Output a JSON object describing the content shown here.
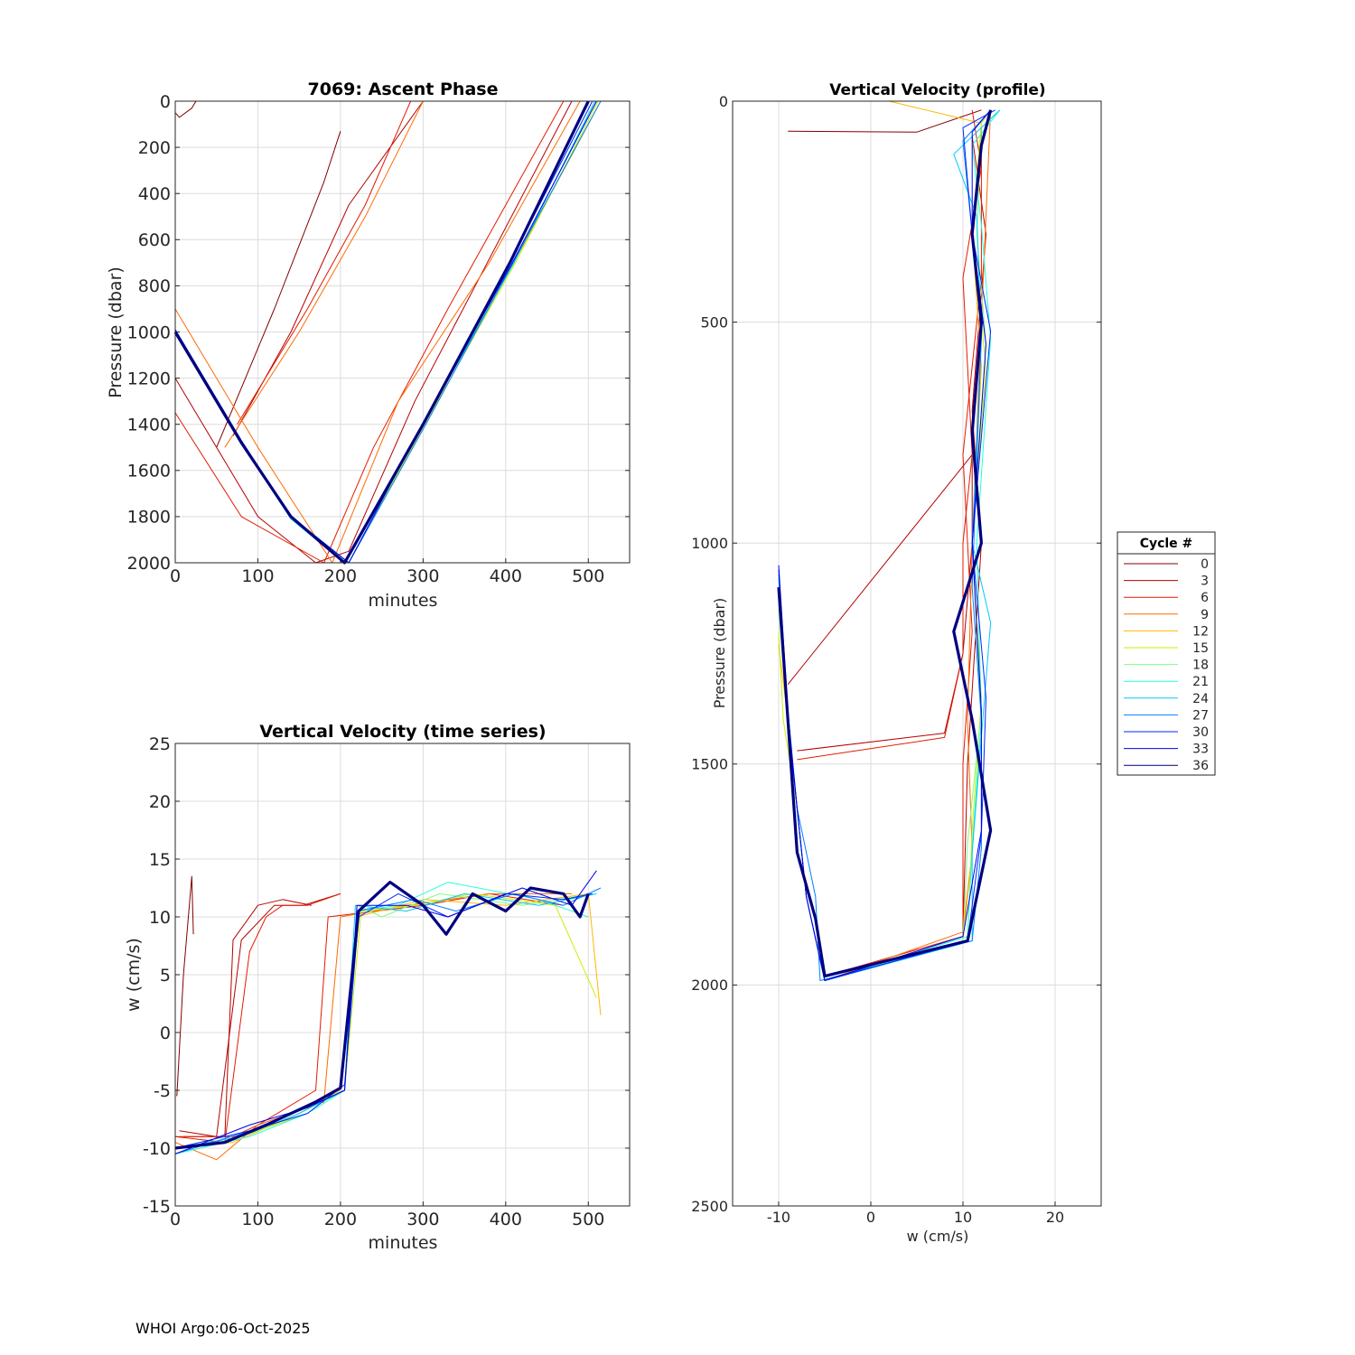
{
  "footer": "WHOI Argo:06-Oct-2025",
  "palette": [
    "#800000",
    "#b40000",
    "#e41a00",
    "#ff6a00",
    "#ffb800",
    "#c8ef00",
    "#7fff7f",
    "#23ffd8",
    "#00c8ff",
    "#0080ff",
    "#0028ff",
    "#0000e8",
    "#000080"
  ],
  "chart_data": [
    {
      "id": "ascent",
      "type": "line",
      "title": "7069: Ascent Phase",
      "xlabel": "minutes",
      "ylabel": "Pressure (dbar)",
      "xlim": [
        0,
        550
      ],
      "ylim": [
        0,
        2000
      ],
      "y_reversed": true,
      "xticks": [
        0,
        100,
        200,
        300,
        400,
        500
      ],
      "yticks": [
        0,
        200,
        400,
        600,
        800,
        1000,
        1200,
        1400,
        1600,
        1800,
        2000
      ],
      "series": [
        {
          "name": "0",
          "x": [
            0,
            5,
            20,
            25
          ],
          "y": [
            50,
            70,
            30,
            0
          ]
        },
        {
          "name": "0",
          "x": [
            50,
            120,
            180,
            200
          ],
          "y": [
            1500,
            900,
            350,
            130
          ]
        },
        {
          "name": "3",
          "x": [
            0,
            100,
            170,
            210,
            290,
            480
          ],
          "y": [
            1200,
            1800,
            2000,
            1950,
            1300,
            0
          ]
        },
        {
          "name": "3",
          "x": [
            70,
            140,
            210,
            300
          ],
          "y": [
            1450,
            1000,
            450,
            0
          ]
        },
        {
          "name": "6",
          "x": [
            0,
            80,
            180,
            240,
            330,
            470
          ],
          "y": [
            1350,
            1800,
            2000,
            1500,
            900,
            0
          ]
        },
        {
          "name": "6",
          "x": [
            75,
            160,
            230,
            285
          ],
          "y": [
            1400,
            900,
            450,
            0
          ]
        },
        {
          "name": "9",
          "x": [
            0,
            100,
            190,
            270,
            380,
            490
          ],
          "y": [
            900,
            1500,
            2000,
            1300,
            700,
            0
          ]
        },
        {
          "name": "9",
          "x": [
            60,
            150,
            230,
            300
          ],
          "y": [
            1500,
            1000,
            500,
            0
          ]
        },
        {
          "name": "12",
          "x": [
            0,
            80,
            140,
            210,
            300,
            410,
            515
          ],
          "y": [
            990,
            1480,
            1800,
            2000,
            1400,
            700,
            0
          ]
        },
        {
          "name": "15",
          "x": [
            0,
            80,
            140,
            210,
            305,
            415,
            512
          ],
          "y": [
            990,
            1480,
            1800,
            2000,
            1380,
            680,
            0
          ]
        },
        {
          "name": "18",
          "x": [
            0,
            80,
            140,
            210,
            300,
            405,
            505
          ],
          "y": [
            990,
            1470,
            1800,
            2000,
            1400,
            700,
            0
          ]
        },
        {
          "name": "21",
          "x": [
            0,
            80,
            140,
            210,
            300,
            410,
            510
          ],
          "y": [
            1000,
            1480,
            1800,
            2000,
            1390,
            690,
            0
          ]
        },
        {
          "name": "24",
          "x": [
            0,
            80,
            140,
            205,
            300,
            410,
            508
          ],
          "y": [
            990,
            1480,
            1810,
            2000,
            1400,
            700,
            0
          ]
        },
        {
          "name": "27",
          "x": [
            0,
            80,
            140,
            210,
            305,
            412,
            515
          ],
          "y": [
            995,
            1480,
            1800,
            2000,
            1390,
            680,
            0
          ]
        },
        {
          "name": "30",
          "x": [
            0,
            80,
            140,
            205,
            300,
            405,
            505
          ],
          "y": [
            1000,
            1480,
            1800,
            2000,
            1400,
            700,
            0
          ]
        },
        {
          "name": "33",
          "x": [
            0,
            80,
            140,
            210,
            302,
            408,
            510
          ],
          "y": [
            990,
            1470,
            1800,
            2000,
            1380,
            700,
            0
          ]
        },
        {
          "name": "36",
          "x": [
            0,
            80,
            140,
            205,
            300,
            405,
            500
          ],
          "y": [
            1000,
            1480,
            1800,
            2000,
            1400,
            700,
            0
          ]
        }
      ]
    },
    {
      "id": "vvts",
      "type": "line",
      "title": "Vertical Velocity (time series)",
      "xlabel": "minutes",
      "ylabel": "w (cm/s)",
      "xlim": [
        0,
        550
      ],
      "ylim": [
        -15,
        25
      ],
      "y_reversed": false,
      "xticks": [
        0,
        100,
        200,
        300,
        400,
        500
      ],
      "yticks": [
        -15,
        -10,
        -5,
        0,
        5,
        10,
        15,
        20,
        25
      ],
      "series": [
        {
          "name": "0",
          "x": [
            2,
            10,
            20,
            22
          ],
          "y": [
            -5.5,
            5,
            13.5,
            8.5
          ]
        },
        {
          "name": "3",
          "x": [
            10,
            60,
            70,
            100,
            130,
            165
          ],
          "y": [
            -9,
            -9,
            8,
            11,
            11.5,
            11
          ]
        },
        {
          "name": "3",
          "x": [
            5,
            50,
            80,
            120,
            155,
            200
          ],
          "y": [
            -8.5,
            -9,
            8,
            11,
            11,
            12
          ]
        },
        {
          "name": "6",
          "x": [
            0,
            70,
            100,
            170,
            185,
            300,
            380,
            470
          ],
          "y": [
            -9,
            -9,
            -8,
            -5,
            10,
            11,
            12,
            11
          ]
        },
        {
          "name": "6",
          "x": [
            0,
            60,
            90,
            110,
            130,
            160,
            200
          ],
          "y": [
            -9,
            -9.5,
            7,
            10,
            11,
            11,
            12
          ]
        },
        {
          "name": "9",
          "x": [
            0,
            50,
            100,
            180,
            200,
            280,
            380,
            480
          ],
          "y": [
            -9.5,
            -11,
            -8,
            -6,
            10,
            11,
            12,
            12
          ]
        },
        {
          "name": "12",
          "x": [
            0,
            70,
            150,
            200,
            220,
            300,
            400,
            500,
            515
          ],
          "y": [
            -10,
            -9.5,
            -7,
            -5,
            10,
            11.5,
            11,
            12,
            1.5
          ]
        },
        {
          "name": "15",
          "x": [
            0,
            80,
            160,
            205,
            225,
            290,
            360,
            460,
            510
          ],
          "y": [
            -10,
            -9,
            -7,
            -5,
            10.5,
            11,
            12,
            11,
            3
          ]
        },
        {
          "name": "18",
          "x": [
            5,
            80,
            150,
            205,
            220,
            250,
            320,
            420,
            505
          ],
          "y": [
            -10,
            -9,
            -7,
            -5,
            11,
            10,
            12,
            11,
            12
          ]
        },
        {
          "name": "21",
          "x": [
            0,
            90,
            160,
            205,
            220,
            270,
            330,
            440,
            500
          ],
          "y": [
            -10.5,
            -9,
            -7,
            -5,
            10.5,
            11,
            13,
            11.5,
            10
          ]
        },
        {
          "name": "24",
          "x": [
            0,
            80,
            150,
            205,
            218,
            280,
            350,
            440,
            510
          ],
          "y": [
            -10,
            -9,
            -7,
            -5,
            11,
            10.5,
            12,
            11,
            12
          ]
        },
        {
          "name": "27",
          "x": [
            0,
            90,
            160,
            205,
            220,
            290,
            340,
            410,
            470,
            515
          ],
          "y": [
            -10.5,
            -8.5,
            -6.5,
            -5,
            10.5,
            11.5,
            10.5,
            12,
            11,
            12.5
          ]
        },
        {
          "name": "30",
          "x": [
            0,
            90,
            160,
            205,
            222,
            270,
            330,
            400,
            470,
            505
          ],
          "y": [
            -10,
            -8.5,
            -7,
            -4.5,
            10,
            12,
            10,
            12,
            11.5,
            12
          ]
        },
        {
          "name": "33",
          "x": [
            0,
            90,
            160,
            205,
            220,
            280,
            330,
            420,
            480,
            510
          ],
          "y": [
            -10.5,
            -8,
            -6.5,
            -5,
            11,
            11,
            10,
            12.5,
            11,
            14
          ]
        },
        {
          "name": "36",
          "x": [
            0,
            60,
            110,
            170,
            200,
            222,
            260,
            300,
            328,
            360,
            400,
            430,
            470,
            490,
            500
          ],
          "y": [
            -10,
            -9.5,
            -8,
            -6,
            -4.8,
            10.5,
            13,
            11,
            8.5,
            12,
            10.5,
            12.5,
            12,
            10,
            12
          ]
        }
      ]
    },
    {
      "id": "vvprof",
      "type": "line",
      "title": "Vertical Velocity (profile)",
      "xlabel": "w (cm/s)",
      "ylabel": "Pressure (dbar)",
      "xlim": [
        -15,
        25
      ],
      "ylim": [
        0,
        2500
      ],
      "y_reversed": true,
      "xticks": [
        -10,
        0,
        10,
        20
      ],
      "yticks": [
        0,
        500,
        1000,
        1500,
        2000,
        2500
      ],
      "series": [
        {
          "name": "0",
          "x": [
            -9,
            5,
            12
          ],
          "y": [
            68,
            70,
            20
          ]
        },
        {
          "name": "3",
          "x": [
            -8,
            8,
            10,
            11,
            11,
            -9
          ],
          "y": [
            1470,
            1430,
            1250,
            1000,
            800,
            1320
          ]
        },
        {
          "name": "3",
          "x": [
            10,
            10.5,
            12,
            11,
            12.5,
            11
          ],
          "y": [
            1880,
            1500,
            1000,
            700,
            300,
            80
          ]
        },
        {
          "name": "6",
          "x": [
            -8,
            8,
            10,
            10,
            11,
            10,
            12,
            11
          ],
          "y": [
            1490,
            1440,
            1250,
            1000,
            800,
            400,
            150,
            20
          ]
        },
        {
          "name": "6",
          "x": [
            -5,
            10,
            10,
            11,
            10,
            12,
            12
          ],
          "y": [
            1980,
            1890,
            1500,
            1200,
            800,
            400,
            60
          ]
        },
        {
          "name": "9",
          "x": [
            -5,
            10,
            11,
            10.5,
            11,
            12,
            13
          ],
          "y": [
            1990,
            1880,
            1700,
            1400,
            1000,
            500,
            20
          ]
        },
        {
          "name": "12",
          "x": [
            -10,
            -9,
            -8,
            -7,
            -5,
            10,
            11,
            12,
            11,
            12,
            11,
            12,
            2
          ],
          "y": [
            1230,
            1400,
            1600,
            1800,
            1990,
            1900,
            1700,
            1400,
            1000,
            600,
            300,
            50,
            0
          ]
        },
        {
          "name": "15",
          "x": [
            -10,
            -9.5,
            -8,
            -7,
            -5,
            10.5,
            11,
            12,
            11,
            12.5,
            11,
            12,
            13
          ],
          "y": [
            1200,
            1400,
            1600,
            1800,
            1990,
            1900,
            1650,
            1350,
            1000,
            600,
            300,
            50,
            20
          ]
        },
        {
          "name": "18",
          "x": [
            -10,
            -9,
            -8,
            -7,
            -5,
            10,
            10.5,
            12,
            11,
            12.5,
            11.5,
            12,
            14
          ],
          "y": [
            1150,
            1400,
            1600,
            1800,
            1990,
            1900,
            1680,
            1380,
            1000,
            550,
            300,
            60,
            20
          ]
        },
        {
          "name": "21",
          "x": [
            -10,
            -9,
            -8,
            -7,
            -5,
            10.5,
            11,
            12,
            11.5,
            13,
            12,
            11,
            14
          ],
          "y": [
            1100,
            1380,
            1600,
            1800,
            1990,
            1890,
            1690,
            1400,
            1000,
            540,
            280,
            100,
            20
          ]
        },
        {
          "name": "24",
          "x": [
            -10,
            -9,
            -8,
            -7,
            -5,
            11,
            11,
            13,
            11,
            12,
            11.5,
            9,
            14
          ],
          "y": [
            1080,
            1400,
            1600,
            1800,
            1990,
            1900,
            1700,
            1180,
            1000,
            540,
            260,
            120,
            20
          ]
        },
        {
          "name": "27",
          "x": [
            -10,
            -9,
            -8,
            -6,
            -5.5,
            11,
            12,
            12,
            11,
            12,
            11,
            10,
            13
          ],
          "y": [
            1070,
            1400,
            1600,
            1800,
            1990,
            1900,
            1690,
            1400,
            1100,
            530,
            300,
            90,
            20
          ]
        },
        {
          "name": "30",
          "x": [
            -10,
            -9,
            -8,
            -7,
            -5,
            10.5,
            12,
            12.5,
            11,
            13,
            11,
            10,
            13.5
          ],
          "y": [
            1060,
            1400,
            1600,
            1800,
            1990,
            1900,
            1660,
            1350,
            1000,
            520,
            300,
            60,
            20
          ]
        },
        {
          "name": "33",
          "x": [
            -10,
            -9,
            -8,
            -7,
            -5,
            10,
            12,
            12,
            11,
            12.5,
            11,
            11,
            13
          ],
          "y": [
            1050,
            1380,
            1600,
            1800,
            1990,
            1890,
            1650,
            1380,
            1000,
            550,
            300,
            70,
            20
          ]
        },
        {
          "name": "36",
          "x": [
            -10,
            -9,
            -8,
            -6,
            -5,
            10.5,
            13,
            11,
            9,
            12,
            11,
            12,
            11,
            12,
            13
          ],
          "y": [
            1100,
            1400,
            1700,
            1850,
            1980,
            1900,
            1650,
            1400,
            1200,
            1000,
            750,
            500,
            300,
            100,
            20
          ]
        }
      ]
    }
  ],
  "legend": {
    "title": "Cycle #",
    "entries": [
      "0",
      "3",
      "6",
      "9",
      "12",
      "15",
      "18",
      "21",
      "24",
      "27",
      "30",
      "33",
      "36"
    ]
  }
}
